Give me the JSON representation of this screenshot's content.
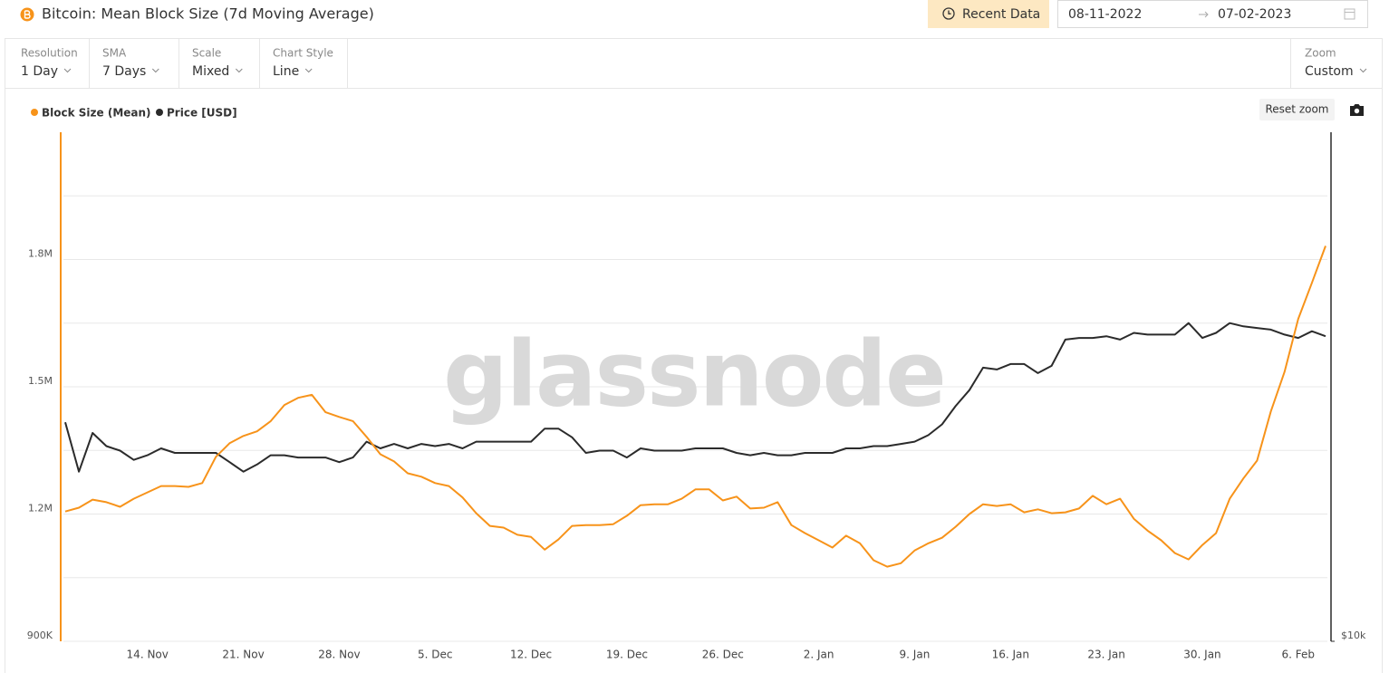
{
  "header": {
    "title": "Bitcoin: Mean Block Size (7d Moving Average)",
    "recent_button": "Recent Data",
    "date_from": "08-11-2022",
    "date_to": "07-02-2023"
  },
  "controls": [
    {
      "label": "Resolution",
      "value": "1 Day"
    },
    {
      "label": "SMA",
      "value": "7 Days"
    },
    {
      "label": "Scale",
      "value": "Mixed"
    },
    {
      "label": "Chart Style",
      "value": "Line"
    }
  ],
  "zoom": {
    "label": "Zoom",
    "value": "Custom"
  },
  "reset_zoom": "Reset zoom",
  "chart_data": {
    "type": "line",
    "watermark": "glassnode",
    "categories": [
      null,
      null,
      null,
      null,
      null,
      null,
      "14. Nov",
      null,
      null,
      null,
      null,
      null,
      null,
      "21. Nov",
      null,
      null,
      null,
      null,
      null,
      null,
      "28. Nov",
      null,
      null,
      null,
      null,
      null,
      null,
      "5. Dec",
      null,
      null,
      null,
      null,
      null,
      null,
      "12. Dec",
      null,
      null,
      null,
      null,
      null,
      null,
      "19. Dec",
      null,
      null,
      null,
      null,
      null,
      null,
      "26. Dec",
      null,
      null,
      null,
      null,
      null,
      null,
      "2. Jan",
      null,
      null,
      null,
      null,
      null,
      null,
      "9. Jan",
      null,
      null,
      null,
      null,
      null,
      null,
      "16. Jan",
      null,
      null,
      null,
      null,
      null,
      null,
      "23. Jan",
      null,
      null,
      null,
      null,
      null,
      null,
      "30. Jan",
      null,
      null,
      null,
      null,
      null,
      null,
      "6. Feb",
      null,
      null
    ],
    "series": [
      {
        "name": "Block Size (Mean)",
        "color": "#f7931a",
        "values": [
          1206000,
          1215000,
          1234000,
          1228000,
          1217000,
          1236000,
          1251000,
          1266000,
          1266000,
          1264000,
          1273000,
          1335000,
          1367000,
          1384000,
          1395000,
          1419000,
          1457000,
          1474000,
          1481000,
          1440000,
          1429000,
          1419000,
          1382000,
          1341000,
          1324000,
          1296000,
          1288000,
          1273000,
          1266000,
          1239000,
          1202000,
          1172000,
          1168000,
          1151000,
          1146000,
          1116000,
          1140000,
          1172000,
          1174000,
          1174000,
          1176000,
          1196000,
          1221000,
          1223000,
          1223000,
          1236000,
          1258000,
          1258000,
          1232000,
          1241000,
          1213000,
          1215000,
          1228000,
          1174000,
          1155000,
          1138000,
          1121000,
          1149000,
          1131000,
          1091000,
          1076000,
          1084000,
          1114000,
          1131000,
          1144000,
          1170000,
          1200000,
          1223000,
          1219000,
          1223000,
          1204000,
          1211000,
          1202000,
          1204000,
          1213000,
          1243000,
          1223000,
          1236000,
          1189000,
          1161000,
          1138000,
          1108000,
          1093000,
          1127000,
          1155000,
          1236000,
          1284000,
          1326000,
          1442000,
          1535000,
          1660000,
          1745000,
          1832000
        ]
      },
      {
        "name": "Price [USD]",
        "color": "#2b2b2b",
        "axis": "y2",
        "values": [
          17900,
          15700,
          17400,
          16800,
          16600,
          16200,
          16400,
          16700,
          16500,
          16500,
          16500,
          16500,
          16100,
          15700,
          16000,
          16400,
          16400,
          16300,
          16300,
          16300,
          16100,
          16300,
          17000,
          16700,
          16900,
          16700,
          16900,
          16800,
          16900,
          16700,
          17000,
          17000,
          17000,
          17000,
          17000,
          17600,
          17600,
          17200,
          16500,
          16600,
          16600,
          16300,
          16700,
          16600,
          16600,
          16600,
          16700,
          16700,
          16700,
          16500,
          16400,
          16500,
          16400,
          16400,
          16500,
          16500,
          16500,
          16700,
          16700,
          16800,
          16800,
          16900,
          17000,
          17300,
          17800,
          18700,
          19500,
          20700,
          20600,
          20900,
          20900,
          20400,
          20800,
          22300,
          22400,
          22400,
          22500,
          22300,
          22700,
          22600,
          22600,
          22600,
          23300,
          22400,
          22700,
          23300,
          23100,
          23000,
          22900,
          22600,
          22400,
          22800,
          22500
        ]
      }
    ],
    "ylim": [
      900000,
      2100000
    ],
    "yticks": [
      {
        "value": 900000,
        "label": "900K"
      },
      {
        "value": 1200000,
        "label": "1.2M"
      },
      {
        "value": 1500000,
        "label": "1.5M"
      },
      {
        "value": 1800000,
        "label": "1.8M"
      }
    ],
    "minor_yticks": [
      1050000,
      1350000,
      1650000,
      1950000
    ],
    "y2lim": [
      10000,
      38700
    ],
    "y2ticks": [
      {
        "value": 10000,
        "label": "$10k"
      }
    ],
    "y2_scale": "log",
    "grid": true
  }
}
